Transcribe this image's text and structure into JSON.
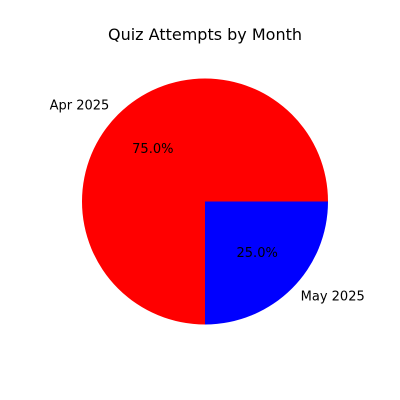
{
  "chart_data": {
    "type": "pie",
    "title": "Quiz Attempts by Month",
    "categories": [
      "Apr 2025",
      "May 2025"
    ],
    "values": [
      75.0,
      25.0
    ],
    "percent_labels": [
      "75.0%",
      "25.0%"
    ],
    "colors": [
      "#ff0000",
      "#0000ff"
    ],
    "start_angle_deg": 0,
    "direction": "counterclockwise",
    "legend": "none"
  }
}
